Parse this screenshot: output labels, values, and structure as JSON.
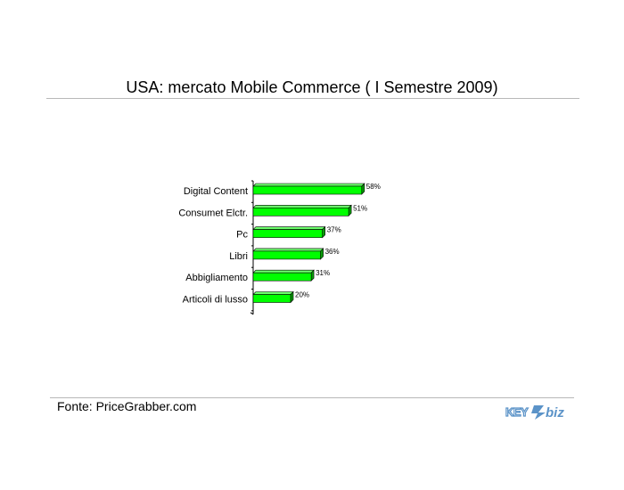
{
  "page": {
    "title": "USA: mercato Mobile Commerce ( I Semestre 2009)",
    "source": "Fonte: PriceGrabber.com",
    "logo_text": "KEY4biz"
  },
  "colors": {
    "bar_fill": "#00ff00",
    "bar_side": "#0a9a0a",
    "bar_top": "#6cff6c",
    "logo_blue": "#5b93c8"
  },
  "chart_data": {
    "type": "bar",
    "orientation": "horizontal",
    "categories": [
      "Digital Content",
      "Consumet Elctr.",
      "Pc",
      "Libri",
      "Abbigliamento",
      "Articoli di lusso"
    ],
    "values": [
      58,
      51,
      37,
      36,
      31,
      20
    ],
    "data_labels": [
      "58%",
      "51%",
      "37%",
      "36%",
      "31%",
      "20%"
    ],
    "xlim": [
      0,
      100
    ],
    "grid": false,
    "legend": "none"
  }
}
